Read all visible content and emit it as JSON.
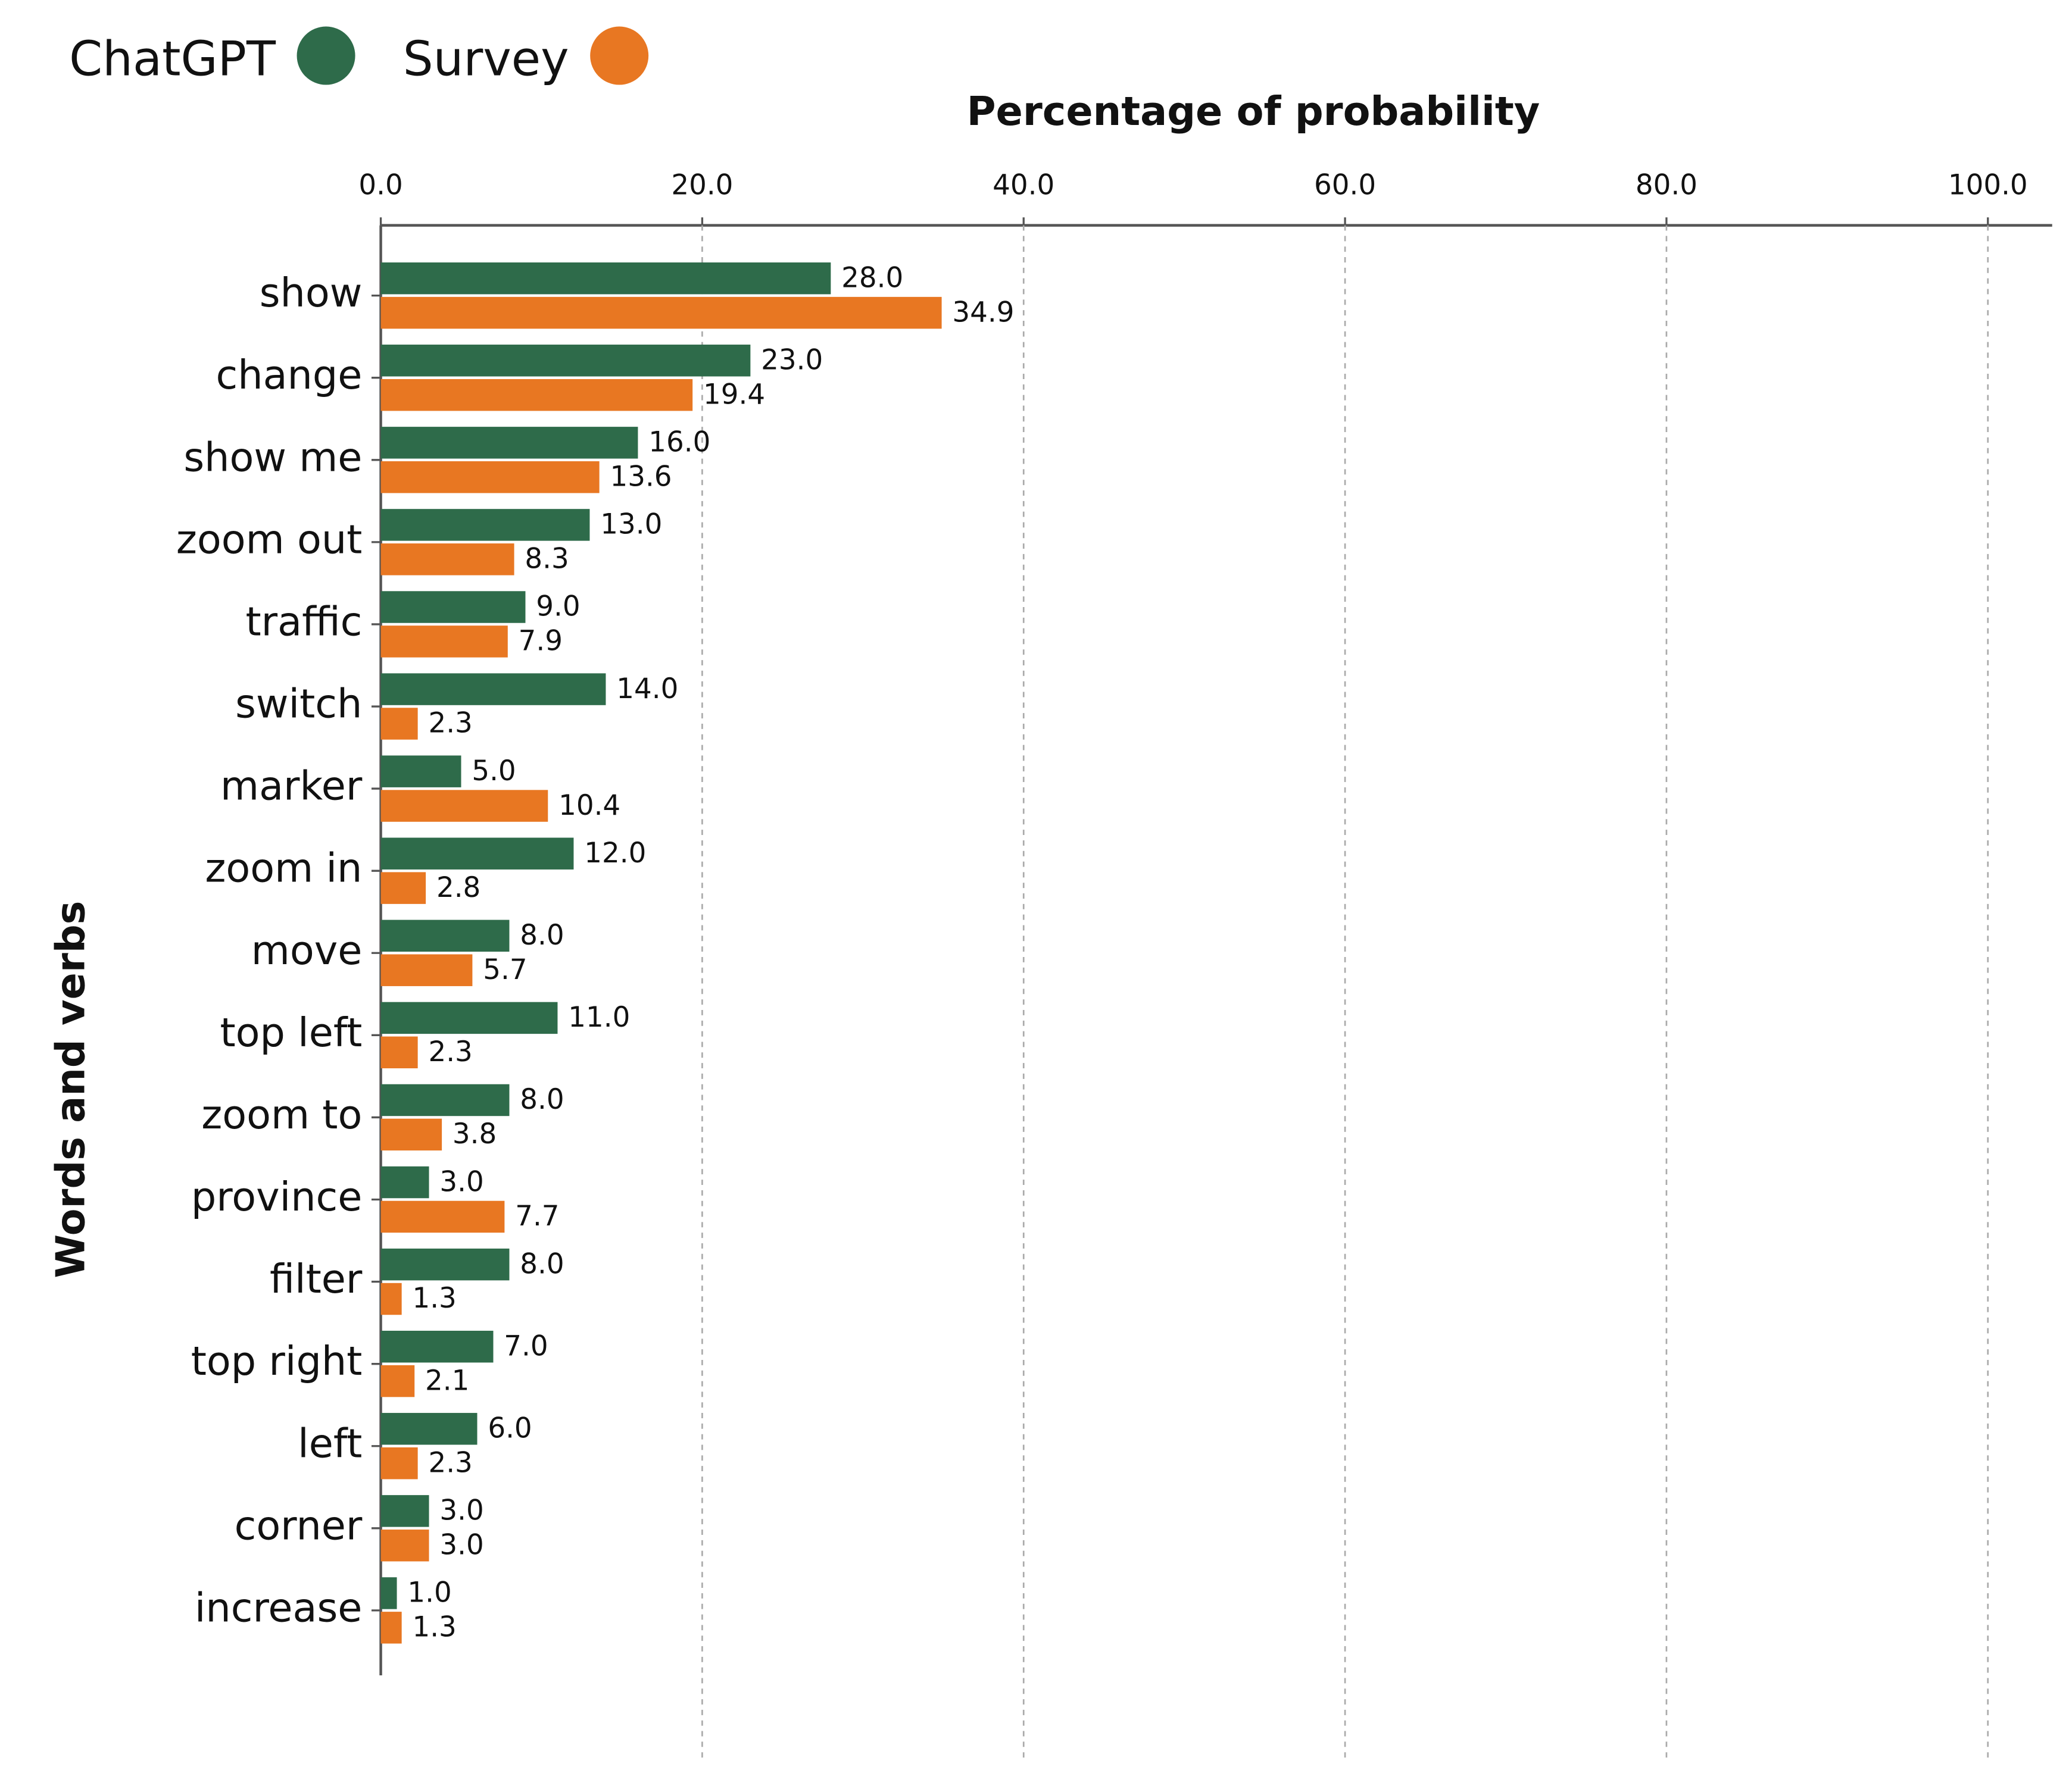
{
  "chart_data": {
    "type": "bar",
    "orientation": "horizontal",
    "x_label": "Percentage of probability",
    "y_label": "Words and verbs",
    "categories": [
      "show",
      "change",
      "show me",
      "zoom out",
      "traffic",
      "switch",
      "marker",
      "zoom in",
      "move",
      "top left",
      "zoom to",
      "province",
      "filter",
      "top right",
      "left",
      "corner",
      "increase"
    ],
    "series": [
      {
        "name": "ChatGPT",
        "color": "#2e6b4a",
        "values": [
          28.0,
          23.0,
          16.0,
          13.0,
          9.0,
          14.0,
          5.0,
          12.0,
          8.0,
          11.0,
          8.0,
          3.0,
          8.0,
          7.0,
          6.0,
          3.0,
          1.0
        ],
        "value_labels": [
          "28.0",
          "23.0",
          "16.0",
          "13.0",
          "9.0",
          "14.0",
          "5.0",
          "12.0",
          "8.0",
          "11.0",
          "8.0",
          "3.0",
          "8.0",
          "7.0",
          "6.0",
          "3.0",
          "1.0"
        ]
      },
      {
        "name": "Survey",
        "color": "#e87722",
        "values": [
          34.9,
          19.4,
          13.6,
          8.3,
          7.9,
          2.3,
          10.4,
          2.8,
          5.7,
          2.3,
          3.8,
          7.7,
          1.3,
          2.1,
          2.3,
          3.0,
          1.3
        ],
        "value_labels": [
          "34.9",
          "19.4",
          "13.6",
          "8.3",
          "7.9",
          "2.3",
          "10.4",
          "2.8",
          "5.7",
          "2.3",
          "3.8",
          "7.7",
          "1.3",
          "2.1",
          "2.3",
          "3.0",
          "1.3"
        ]
      }
    ],
    "xlim": [
      0,
      104
    ],
    "xticks": [
      {
        "value": 0,
        "label": "0.0"
      },
      {
        "value": 20,
        "label": "20.0"
      },
      {
        "value": 40,
        "label": "40.0"
      },
      {
        "value": 60,
        "label": "60.0"
      },
      {
        "value": 80,
        "label": "80.0"
      },
      {
        "value": 100,
        "label": "100.0"
      }
    ],
    "grid": true,
    "legend": "top-left"
  }
}
